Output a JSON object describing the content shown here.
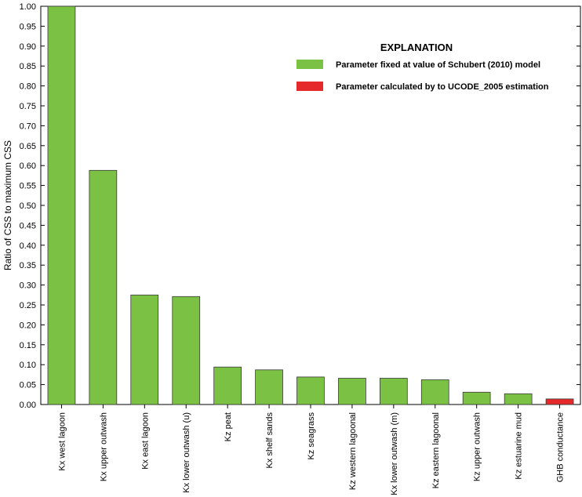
{
  "chart_data": {
    "type": "bar",
    "ylabel": "Ratio of CSS to maximum CSS",
    "xlabel": "",
    "ylim": [
      0,
      1.0
    ],
    "yticks": [
      "0.00",
      "0.05",
      "0.10",
      "0.15",
      "0.20",
      "0.25",
      "0.30",
      "0.35",
      "0.40",
      "0.45",
      "0.50",
      "0.55",
      "0.60",
      "0.65",
      "0.70",
      "0.75",
      "0.80",
      "0.85",
      "0.90",
      "0.95",
      "1.00"
    ],
    "categories": [
      "Kx west lagoon",
      "Kx upper outwash",
      "Kx east lagoon",
      "Kx lower outwash (u)",
      "Kz peat",
      "Kx shelf sands",
      "Kz seagrass",
      "Kz western lagoonal",
      "Kx lower outwash (m)",
      "Kz eastern lagoonal",
      "Kz upper outwash",
      "Kz estuarine mud",
      "GHB conductance"
    ],
    "values": [
      1.0,
      0.588,
      0.275,
      0.271,
      0.094,
      0.087,
      0.069,
      0.066,
      0.066,
      0.062,
      0.031,
      0.027,
      0.014
    ],
    "groups": [
      "fixed",
      "fixed",
      "fixed",
      "fixed",
      "fixed",
      "fixed",
      "fixed",
      "fixed",
      "fixed",
      "fixed",
      "fixed",
      "fixed",
      "calculated"
    ],
    "grid": false,
    "legend": {
      "title": "EXPLANATION",
      "placement": "top-right",
      "items": [
        {
          "key": "fixed",
          "label": "Parameter fixed at value of Schubert (2010) model",
          "color": "#7bc143"
        },
        {
          "key": "calculated",
          "label": "Parameter calculated by to UCODE_2005 estimation",
          "color": "#e5282a"
        }
      ]
    }
  }
}
